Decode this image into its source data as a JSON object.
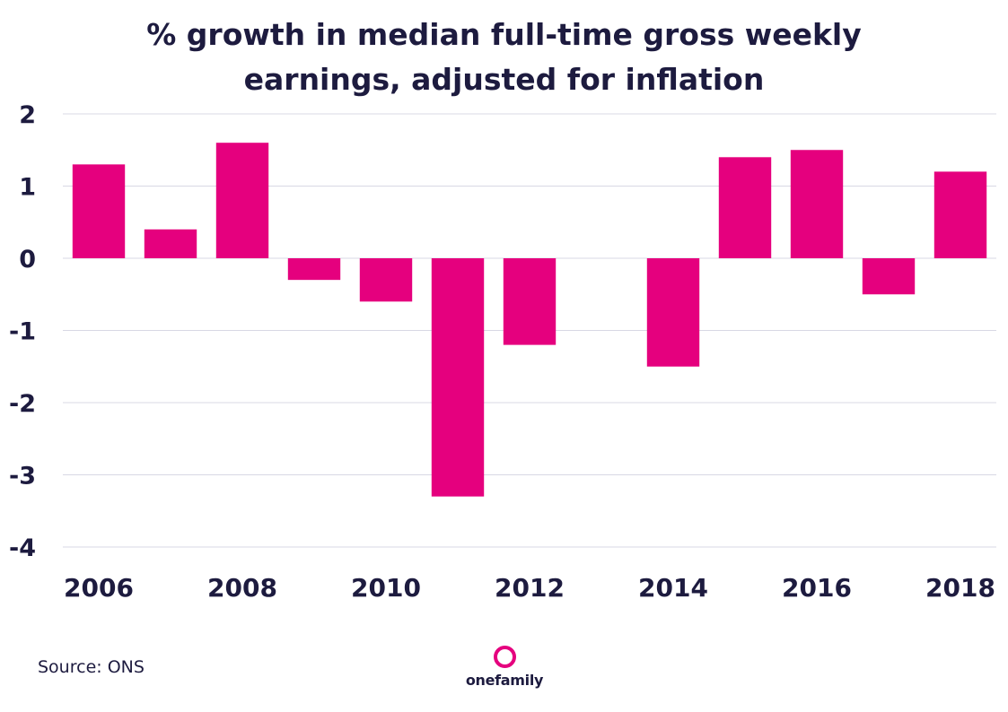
{
  "chart_data": {
    "type": "bar",
    "title_lines": [
      "% growth in median full-time gross weekly",
      "earnings, adjusted for inflation"
    ],
    "categories": [
      "2006",
      "2007",
      "2008",
      "2009",
      "2010",
      "2011",
      "2012",
      "2013",
      "2014",
      "2015",
      "2016",
      "2017",
      "2018"
    ],
    "values": [
      1.3,
      0.4,
      1.6,
      -0.3,
      -0.6,
      -3.3,
      -1.2,
      0,
      -1.5,
      1.4,
      1.5,
      -0.5,
      1.2
    ],
    "x_tick_labels": [
      "2006",
      "",
      "2008",
      "",
      "2010",
      "",
      "2012",
      "",
      "2014",
      "",
      "2016",
      "",
      "2018"
    ],
    "y_ticks": [
      2,
      1,
      0,
      -1,
      -2,
      -3,
      -4
    ],
    "ylim": [
      -4,
      2
    ],
    "xlabel": "",
    "ylabel": "",
    "grid": true,
    "bar_color": "#e5007e",
    "grid_color": "#d8d8e4",
    "text_color": "#1d1b3f"
  },
  "footer": {
    "source": "Source: ONS",
    "logo_text": "onefamily"
  }
}
